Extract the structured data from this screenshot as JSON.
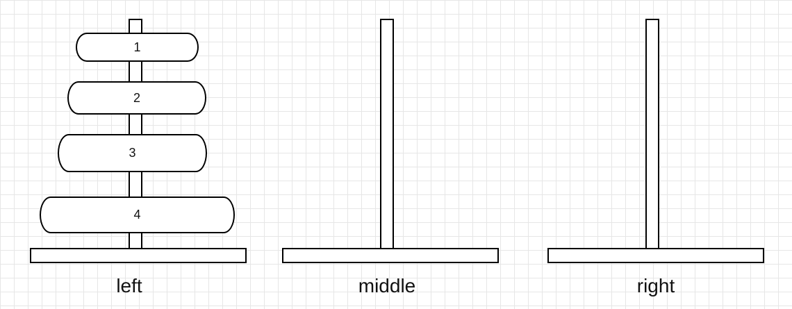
{
  "pegs": [
    {
      "label": "left"
    },
    {
      "label": "middle"
    },
    {
      "label": "right"
    }
  ],
  "disks": [
    "1",
    "2",
    "3",
    "4"
  ]
}
